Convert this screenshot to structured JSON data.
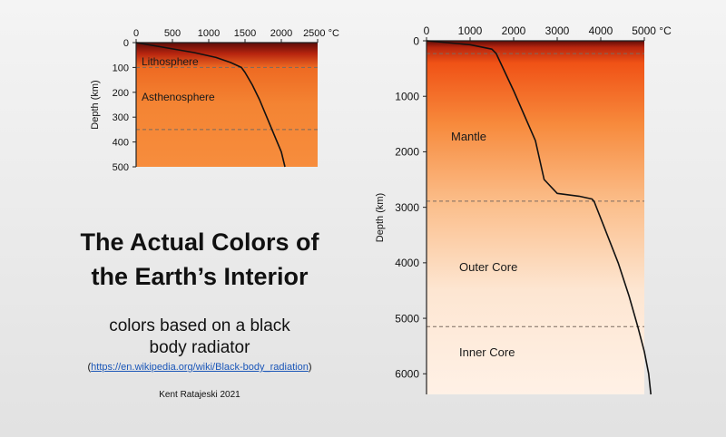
{
  "page": {
    "title_lines": [
      "The Actual Colors of",
      "the Earth’s Interior"
    ],
    "subtitle_lines": [
      "colors based on a black",
      "body radiator"
    ],
    "link_open": "(",
    "link_text": "https://en.wikipedia.org/wiki/Black-body_radiation",
    "link_close": ")",
    "author": "Kent Ratajeski 2021"
  },
  "chart_data": [
    {
      "type": "line",
      "name": "upper",
      "x_unit": "°C",
      "ylabel": "Depth (km)",
      "xlim": [
        0,
        2500
      ],
      "ylim": [
        0,
        500
      ],
      "x_ticks": [
        0,
        500,
        1000,
        1500,
        2000,
        2500
      ],
      "y_ticks": [
        0,
        100,
        200,
        300,
        400,
        500
      ],
      "y_inverted": true,
      "x_axis_position": "top",
      "series": [
        {
          "x": [
            0,
            400,
            800,
            1100,
            1300,
            1450,
            1500,
            1600,
            1700,
            1800,
            1900,
            2000,
            2050
          ],
          "y": [
            0,
            20,
            40,
            60,
            80,
            100,
            120,
            170,
            230,
            300,
            370,
            440,
            500
          ]
        }
      ],
      "layers": [
        {
          "label": "Lithosphere",
          "top": 0,
          "bottom": 100
        },
        {
          "label": "Asthenosphere",
          "top": 100,
          "bottom": 350
        }
      ],
      "boundaries": [
        100,
        350
      ],
      "color_stops": [
        {
          "depth": 0,
          "color": "#5e0c08"
        },
        {
          "depth": 45,
          "color": "#b7250f"
        },
        {
          "depth": 100,
          "color": "#ee6a22"
        },
        {
          "depth": 250,
          "color": "#f48433"
        },
        {
          "depth": 500,
          "color": "#f78d3d"
        }
      ]
    },
    {
      "type": "line",
      "name": "whole-earth",
      "x_unit": "°C",
      "ylabel": "Depth (km)",
      "xlim": [
        0,
        5000
      ],
      "ylim": [
        0,
        6371
      ],
      "x_ticks": [
        0,
        1000,
        2000,
        3000,
        4000,
        5000
      ],
      "y_ticks": [
        0,
        1000,
        2000,
        3000,
        4000,
        5000,
        6000
      ],
      "y_inverted": true,
      "x_axis_position": "top",
      "series": [
        {
          "x": [
            0,
            1000,
            1500,
            1600,
            2000,
            2500,
            2700,
            3000,
            3500,
            3800,
            3850,
            4100,
            4400,
            4650,
            4850,
            5000,
            5100,
            5150
          ],
          "y": [
            0,
            70,
            150,
            230,
            900,
            1800,
            2500,
            2750,
            2800,
            2850,
            2900,
            3400,
            4000,
            4600,
            5150,
            5600,
            6000,
            6371
          ]
        }
      ],
      "layers": [
        {
          "label": "Mantle",
          "top": 0,
          "bottom": 2890
        },
        {
          "label": "Outer Core",
          "top": 2890,
          "bottom": 5150
        },
        {
          "label": "Inner Core",
          "top": 5150,
          "bottom": 6371
        }
      ],
      "boundaries": [
        230,
        2890,
        5150
      ],
      "color_stops": [
        {
          "depth": 0,
          "color": "#5e0c08"
        },
        {
          "depth": 120,
          "color": "#b8260e"
        },
        {
          "depth": 400,
          "color": "#f05216"
        },
        {
          "depth": 1500,
          "color": "#f78a3c"
        },
        {
          "depth": 2890,
          "color": "#fbbd89"
        },
        {
          "depth": 4500,
          "color": "#fde6d2"
        },
        {
          "depth": 6371,
          "color": "#fff1e6"
        }
      ]
    }
  ]
}
